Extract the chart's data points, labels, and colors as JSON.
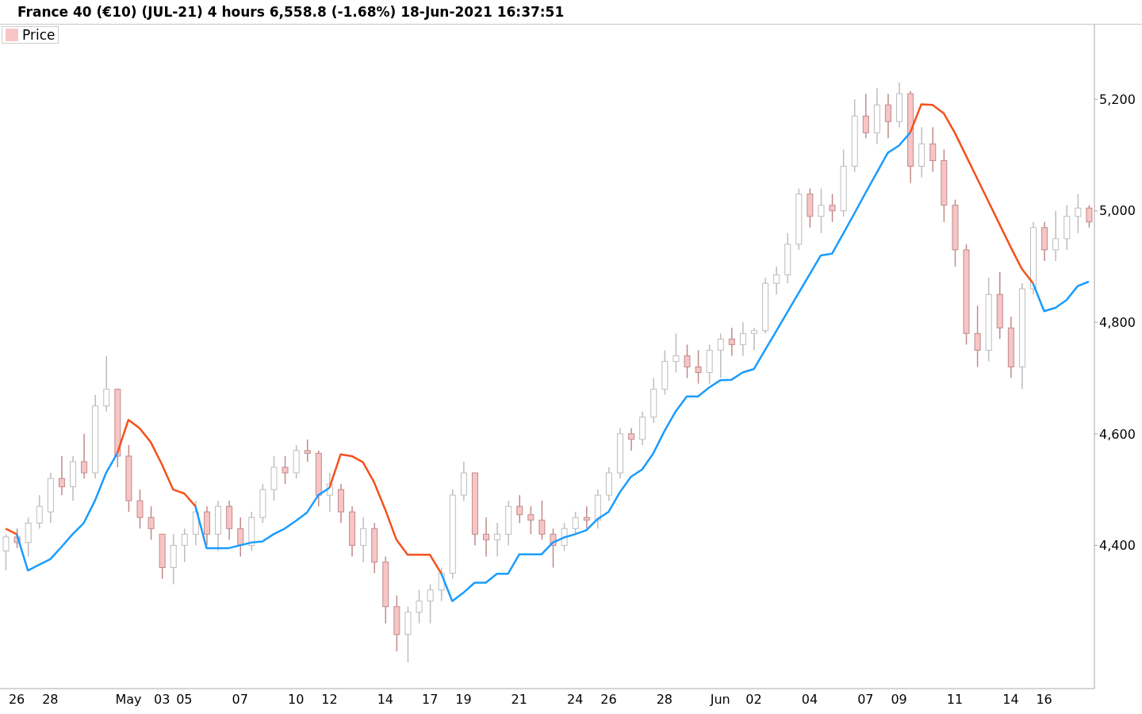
{
  "chart_data": {
    "type": "candlestick",
    "title": "France 40 (€10) (JUL-21) 4 hours 6,558.8 (-1.68%) 18-Jun-2021 16:37:51",
    "categories": [
      null,
      "26",
      null,
      null,
      "28",
      null,
      null,
      null,
      null,
      null,
      null,
      "May",
      null,
      null,
      "03",
      null,
      "05",
      null,
      null,
      null,
      null,
      "07",
      null,
      null,
      null,
      null,
      "10",
      null,
      null,
      "12",
      null,
      null,
      null,
      null,
      "14",
      null,
      null,
      null,
      "17",
      null,
      null,
      "19",
      null,
      null,
      null,
      null,
      "21",
      null,
      null,
      null,
      null,
      "24",
      null,
      null,
      "26",
      null,
      null,
      null,
      null,
      "28",
      null,
      null,
      null,
      null,
      "Jun",
      null,
      null,
      "02",
      null,
      null,
      null,
      null,
      "04",
      null,
      null,
      null,
      null,
      "07",
      null,
      null,
      "09",
      null,
      null,
      null,
      null,
      "11",
      null,
      null,
      null,
      null,
      "14",
      null,
      null,
      "16",
      null,
      null,
      null,
      null
    ],
    "series": [
      {
        "name": "Price",
        "colors": [
          "#ffffff",
          "#f7c5c5",
          "#ffffff",
          "#ffffff",
          "#ffffff",
          "#f7c5c5",
          "#ffffff",
          "#f7c5c5",
          "#ffffff",
          "#ffffff",
          "#f7c5c5",
          "#f7c5c5",
          "#f7c5c5",
          "#f7c5c5",
          "#f7c5c5",
          "#ffffff",
          "#ffffff",
          "#ffffff",
          "#f7c5c5",
          "#ffffff",
          "#f7c5c5",
          "#f7c5c5",
          "#ffffff",
          "#ffffff",
          "#ffffff",
          "#f7c5c5",
          "#ffffff",
          "#f7c5c5",
          "#f7c5c5",
          "#ffffff",
          "#f7c5c5",
          "#f7c5c5",
          "#ffffff",
          "#f7c5c5",
          "#f7c5c5",
          "#f7c5c5",
          "#ffffff",
          "#ffffff",
          "#ffffff",
          "#ffffff",
          "#ffffff",
          "#ffffff",
          "#f7c5c5",
          "#f7c5c5",
          "#ffffff",
          "#ffffff",
          "#f7c5c5",
          "#f7c5c5",
          "#f7c5c5",
          "#f7c5c5",
          "#ffffff",
          "#ffffff",
          "#f7c5c5",
          "#ffffff",
          "#ffffff",
          "#ffffff",
          "#f7c5c5",
          "#ffffff",
          "#ffffff",
          "#ffffff",
          "#ffffff",
          "#f7c5c5",
          "#f7c5c5",
          "#ffffff",
          "#ffffff",
          "#f7c5c5",
          "#ffffff",
          "#ffffff",
          "#ffffff",
          "#ffffff",
          "#ffffff",
          "#ffffff",
          "#f7c5c5",
          "#ffffff",
          "#f7c5c5",
          "#ffffff",
          "#ffffff",
          "#f7c5c5",
          "#ffffff",
          "#f7c5c5",
          "#ffffff",
          "#f7c5c5",
          "#ffffff",
          "#f7c5c5",
          "#f7c5c5",
          "#f7c5c5",
          "#f7c5c5",
          "#f7c5c5",
          "#ffffff",
          "#f7c5c5",
          "#f7c5c5",
          "#ffffff",
          "#ffffff",
          "#f7c5c5",
          "#ffffff",
          "#ffffff",
          "#ffffff",
          "#f7c5c5"
        ],
        "ohlc": [
          [
            4390,
            4420,
            4355,
            4415
          ],
          [
            4415,
            4430,
            4395,
            4405
          ],
          [
            4405,
            4450,
            4380,
            4440
          ],
          [
            4440,
            4490,
            4430,
            4470
          ],
          [
            4460,
            4530,
            4440,
            4520
          ],
          [
            4520,
            4560,
            4490,
            4505
          ],
          [
            4505,
            4560,
            4480,
            4550
          ],
          [
            4550,
            4600,
            4520,
            4530
          ],
          [
            4530,
            4670,
            4520,
            4650
          ],
          [
            4650,
            4740,
            4640,
            4680
          ],
          [
            4680,
            4680,
            4540,
            4560
          ],
          [
            4560,
            4580,
            4460,
            4480
          ],
          [
            4480,
            4500,
            4430,
            4450
          ],
          [
            4450,
            4470,
            4410,
            4430
          ],
          [
            4420,
            4420,
            4340,
            4360
          ],
          [
            4360,
            4420,
            4330,
            4400
          ],
          [
            4400,
            4430,
            4370,
            4420
          ],
          [
            4420,
            4480,
            4400,
            4460
          ],
          [
            4460,
            4470,
            4400,
            4420
          ],
          [
            4420,
            4480,
            4390,
            4470
          ],
          [
            4470,
            4480,
            4410,
            4430
          ],
          [
            4430,
            4450,
            4380,
            4400
          ],
          [
            4400,
            4460,
            4390,
            4450
          ],
          [
            4450,
            4510,
            4440,
            4500
          ],
          [
            4500,
            4560,
            4480,
            4540
          ],
          [
            4540,
            4560,
            4510,
            4530
          ],
          [
            4530,
            4580,
            4520,
            4570
          ],
          [
            4570,
            4590,
            4550,
            4565
          ],
          [
            4565,
            4570,
            4470,
            4490
          ],
          [
            4490,
            4530,
            4460,
            4510
          ],
          [
            4500,
            4510,
            4440,
            4460
          ],
          [
            4460,
            4470,
            4380,
            4400
          ],
          [
            4400,
            4450,
            4370,
            4430
          ],
          [
            4430,
            4440,
            4350,
            4370
          ],
          [
            4370,
            4380,
            4260,
            4290
          ],
          [
            4290,
            4310,
            4210,
            4240
          ],
          [
            4240,
            4290,
            4190,
            4280
          ],
          [
            4280,
            4320,
            4260,
            4300
          ],
          [
            4300,
            4330,
            4260,
            4320
          ],
          [
            4320,
            4360,
            4300,
            4350
          ],
          [
            4350,
            4500,
            4340,
            4490
          ],
          [
            4490,
            4550,
            4480,
            4530
          ],
          [
            4530,
            4530,
            4400,
            4420
          ],
          [
            4420,
            4450,
            4380,
            4410
          ],
          [
            4410,
            4440,
            4380,
            4420
          ],
          [
            4420,
            4480,
            4400,
            4470
          ],
          [
            4470,
            4490,
            4440,
            4455
          ],
          [
            4455,
            4470,
            4420,
            4445
          ],
          [
            4445,
            4480,
            4410,
            4420
          ],
          [
            4420,
            4430,
            4360,
            4400
          ],
          [
            4400,
            4440,
            4390,
            4430
          ],
          [
            4430,
            4460,
            4420,
            4450
          ],
          [
            4450,
            4470,
            4430,
            4445
          ],
          [
            4445,
            4500,
            4430,
            4490
          ],
          [
            4490,
            4540,
            4480,
            4530
          ],
          [
            4530,
            4610,
            4520,
            4600
          ],
          [
            4600,
            4610,
            4570,
            4590
          ],
          [
            4590,
            4640,
            4580,
            4630
          ],
          [
            4630,
            4700,
            4620,
            4680
          ],
          [
            4680,
            4750,
            4670,
            4730
          ],
          [
            4730,
            4780,
            4710,
            4740
          ],
          [
            4740,
            4760,
            4700,
            4720
          ],
          [
            4720,
            4750,
            4690,
            4710
          ],
          [
            4710,
            4760,
            4690,
            4750
          ],
          [
            4750,
            4780,
            4700,
            4770
          ],
          [
            4770,
            4790,
            4740,
            4760
          ],
          [
            4760,
            4800,
            4740,
            4780
          ],
          [
            4780,
            4790,
            4750,
            4785
          ],
          [
            4785,
            4880,
            4780,
            4870
          ],
          [
            4870,
            4900,
            4850,
            4885
          ],
          [
            4885,
            4960,
            4870,
            4940
          ],
          [
            4940,
            5040,
            4930,
            5030
          ],
          [
            5030,
            5040,
            4970,
            4990
          ],
          [
            4990,
            5040,
            4960,
            5010
          ],
          [
            5010,
            5030,
            4980,
            5000
          ],
          [
            5000,
            5110,
            4990,
            5080
          ],
          [
            5080,
            5200,
            5070,
            5170
          ],
          [
            5170,
            5210,
            5130,
            5140
          ],
          [
            5140,
            5220,
            5120,
            5190
          ],
          [
            5190,
            5210,
            5130,
            5160
          ],
          [
            5160,
            5230,
            5150,
            5210
          ],
          [
            5210,
            5215,
            5050,
            5080
          ],
          [
            5080,
            5150,
            5060,
            5120
          ],
          [
            5120,
            5150,
            5070,
            5090
          ],
          [
            5090,
            5110,
            4980,
            5010
          ],
          [
            5010,
            5020,
            4900,
            4930
          ],
          [
            4930,
            4940,
            4760,
            4780
          ],
          [
            4780,
            4830,
            4720,
            4750
          ],
          [
            4750,
            4880,
            4730,
            4850
          ],
          [
            4850,
            4890,
            4770,
            4790
          ],
          [
            4790,
            4810,
            4700,
            4720
          ],
          [
            4720,
            4870,
            4680,
            4860
          ],
          [
            4860,
            4980,
            4850,
            4970
          ],
          [
            4970,
            4980,
            4910,
            4930
          ],
          [
            4930,
            5000,
            4910,
            4950
          ],
          [
            4950,
            5010,
            4930,
            4990
          ],
          [
            4990,
            5030,
            4960,
            5005
          ],
          [
            5005,
            5010,
            4970,
            4980
          ]
        ]
      },
      {
        "type": "line",
        "color": "#f4511e",
        "values": [
          4430,
          4420,
          null,
          null,
          null,
          null,
          null,
          null,
          null,
          null,
          4565,
          4625,
          4610,
          4585,
          4545,
          4500,
          4493,
          4470,
          null,
          null,
          null,
          null,
          null,
          null,
          null,
          null,
          null,
          null,
          null,
          4503,
          4563,
          4560,
          4549,
          4513,
          4464,
          4410,
          4383,
          4383,
          4383,
          4350,
          null,
          null,
          null,
          null,
          null,
          null,
          null,
          null,
          null,
          null,
          null,
          null,
          null,
          null,
          null,
          null,
          null,
          null,
          null,
          null,
          null,
          null,
          null,
          null,
          null,
          null,
          null,
          null,
          null,
          null,
          null,
          null,
          null,
          null,
          null,
          null,
          null,
          null,
          null,
          null,
          null,
          5140,
          5191,
          5190,
          5175,
          5140,
          5099,
          5058,
          5017,
          4976,
          4935,
          4896,
          4870,
          null,
          null,
          null,
          null,
          null
        ]
      },
      {
        "type": "line",
        "color": "#1a9cff",
        "values": [
          null,
          4420,
          4355,
          4365,
          4375,
          4397,
          4420,
          4440,
          4480,
          4530,
          4565,
          null,
          null,
          null,
          null,
          null,
          null,
          4470,
          4395,
          4395,
          4395,
          4400,
          4405,
          4407,
          4420,
          4430,
          4444,
          4459,
          4490,
          4503,
          null,
          null,
          null,
          null,
          null,
          null,
          null,
          null,
          null,
          4350,
          4300,
          4315,
          4333,
          4333,
          4349,
          4349,
          4384,
          4384,
          4384,
          4405,
          4414,
          4420,
          4427,
          4447,
          4460,
          4495,
          4523,
          4536,
          4565,
          4605,
          4640,
          4667,
          4667,
          4683,
          4696,
          4697,
          4710,
          4716,
          4750,
          4784,
          4818,
          4852,
          4886,
          4920,
          4923,
          4959,
          4995,
          5032,
          5068,
          5104,
          5117,
          5140,
          null,
          null,
          null,
          null,
          null,
          null,
          null,
          null,
          null,
          null,
          4870,
          4820,
          4826,
          4840,
          4865,
          4873
        ]
      }
    ],
    "ylim": [
      4143,
      5334
    ],
    "yticks": [
      {
        "value": 4400,
        "label": "4,400"
      },
      {
        "value": 4600,
        "label": "4,600"
      },
      {
        "value": 4800,
        "label": "4,800"
      },
      {
        "value": 5000,
        "label": "5,000"
      },
      {
        "value": 5200,
        "label": "5,200"
      }
    ],
    "grid": false,
    "legend": "top left",
    "line_style": "solid",
    "marker": "none"
  }
}
